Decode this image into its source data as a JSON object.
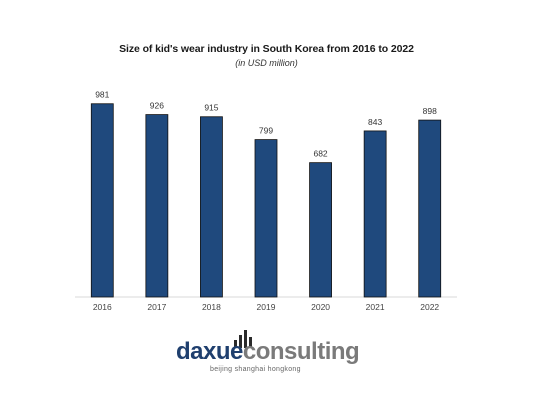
{
  "chart_data": {
    "type": "bar",
    "title": "Size of kid's wear industry in South Korea from 2016 to 2022",
    "subtitle": "(in USD million)",
    "categories": [
      "2016",
      "2017",
      "2018",
      "2019",
      "2020",
      "2021",
      "2022"
    ],
    "values": [
      981,
      926,
      915,
      799,
      682,
      843,
      898
    ],
    "data_labels": [
      "981",
      "926",
      "915",
      "799",
      "682",
      "843",
      "898"
    ],
    "ylim": [
      0,
      1000
    ],
    "xlabel": "",
    "ylabel": "",
    "grid": false,
    "legend": "none",
    "bar_color": "#1f497d",
    "bar_outline": "#111111"
  },
  "logo": {
    "word_part1": "daxue",
    "word_part2": "consulting",
    "tagline": "beijing shanghai hongkong",
    "color_primary": "#1f3f6e",
    "color_secondary": "#7a7a7a"
  }
}
